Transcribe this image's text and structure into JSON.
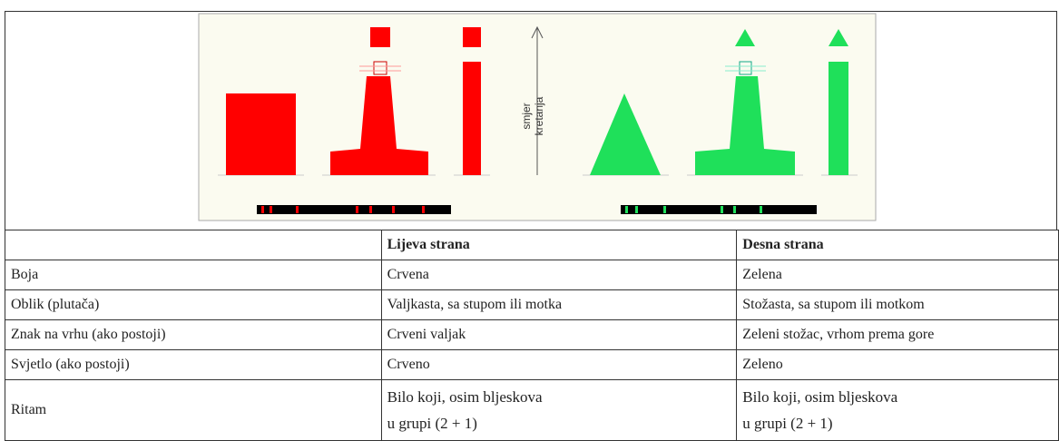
{
  "figure": {
    "direction_label": [
      "smjer",
      "kretanja"
    ]
  },
  "table": {
    "headers": [
      "Lijeva strana",
      "Desna strana"
    ],
    "rows": [
      {
        "label": "Boja",
        "left": "Crvena",
        "right": "Zelena"
      },
      {
        "label": "Oblik (plutača)",
        "left": "Valjkasta, sa stupom ili motka",
        "right": "Stožasta, sa stupom ili motkom"
      },
      {
        "label": "Znak na vrhu (ako postoji)",
        "left": "Crveni valjak",
        "right": "Zeleni stožac, vrhom prema gore"
      },
      {
        "label": "Svjetlo (ako postoji)",
        "left": "Crveno",
        "right": "Zeleno"
      },
      {
        "label": "Ritam",
        "left": [
          "Bilo koji, osim bljeskova",
          "u grupi (2 + 1)"
        ],
        "right": [
          "Bilo koji, osim bljeskova",
          "u grupi (2 + 1)"
        ]
      }
    ]
  }
}
